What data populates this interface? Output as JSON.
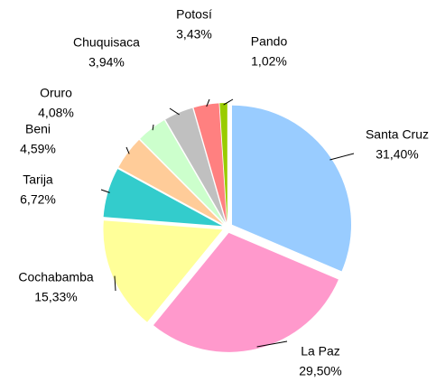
{
  "chart_data": {
    "type": "pie",
    "categories": [
      "Santa Cruz",
      "La Paz",
      "Cochabamba",
      "Tarija",
      "Beni",
      "Oruro",
      "Chuquisaca",
      "Potosí",
      "Pando"
    ],
    "values": [
      31.4,
      29.5,
      15.33,
      6.72,
      4.59,
      4.08,
      3.94,
      3.43,
      1.02
    ],
    "value_labels": [
      "31,40%",
      "29,50%",
      "15,33%",
      "6,72%",
      "4,59%",
      "4,08%",
      "3,94%",
      "3,43%",
      "1,02%"
    ],
    "colors": [
      "#99ccff",
      "#ff99cc",
      "#ffff99",
      "#33cccc",
      "#ffcc99",
      "#ccffcc",
      "#c0c0c0",
      "#ff8080",
      "#99cc00"
    ]
  }
}
